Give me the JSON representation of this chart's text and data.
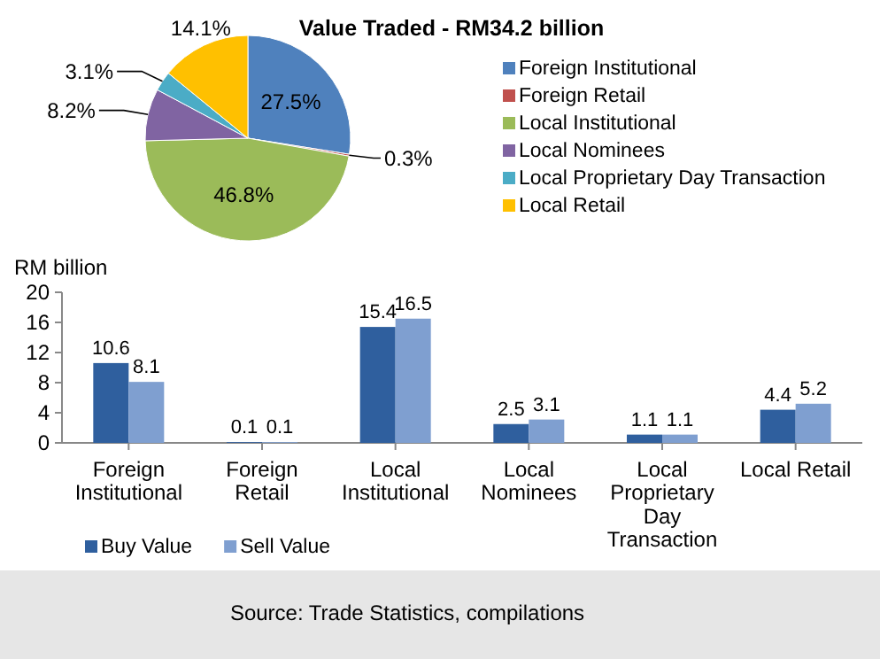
{
  "chart_data": [
    {
      "type": "pie",
      "title": "Value Traded  - RM34.2 billion",
      "categories": [
        "Foreign Institutional",
        "Foreign Retail",
        "Local Institutional",
        "Local Nominees",
        "Local Proprietary Day Transaction",
        "Local Retail"
      ],
      "values": [
        27.5,
        0.3,
        46.8,
        8.2,
        3.1,
        14.1
      ],
      "colors": [
        "#4f81bd",
        "#c0504d",
        "#9bbb59",
        "#8064a2",
        "#4bacc6",
        "#ffc000"
      ],
      "value_labels": [
        "27.5%",
        "0.3%",
        "46.8%",
        "8.2%",
        "3.1%",
        "14.1%"
      ],
      "legend": "right"
    },
    {
      "type": "bar",
      "ylabel": "RM billion",
      "categories": [
        "Foreign Institutional",
        "Foreign Retail",
        "Local Institutional",
        "Local Nominees",
        "Local Proprietary Day Transaction",
        "Local Retail"
      ],
      "series": [
        {
          "name": "Buy Value",
          "color": "#2f5f9e",
          "values": [
            10.6,
            0.1,
            15.4,
            2.5,
            1.1,
            4.4
          ]
        },
        {
          "name": "Sell Value",
          "color": "#7f9fd0",
          "values": [
            8.1,
            0.1,
            16.5,
            3.1,
            1.1,
            5.2
          ]
        }
      ],
      "ylim": [
        0,
        20
      ],
      "yticks": [
        0,
        4,
        8,
        12,
        16,
        20
      ],
      "data_labels": true,
      "legend": "bottom left",
      "annotations": [
        "Source: Trade Statistics, compilations"
      ]
    }
  ]
}
